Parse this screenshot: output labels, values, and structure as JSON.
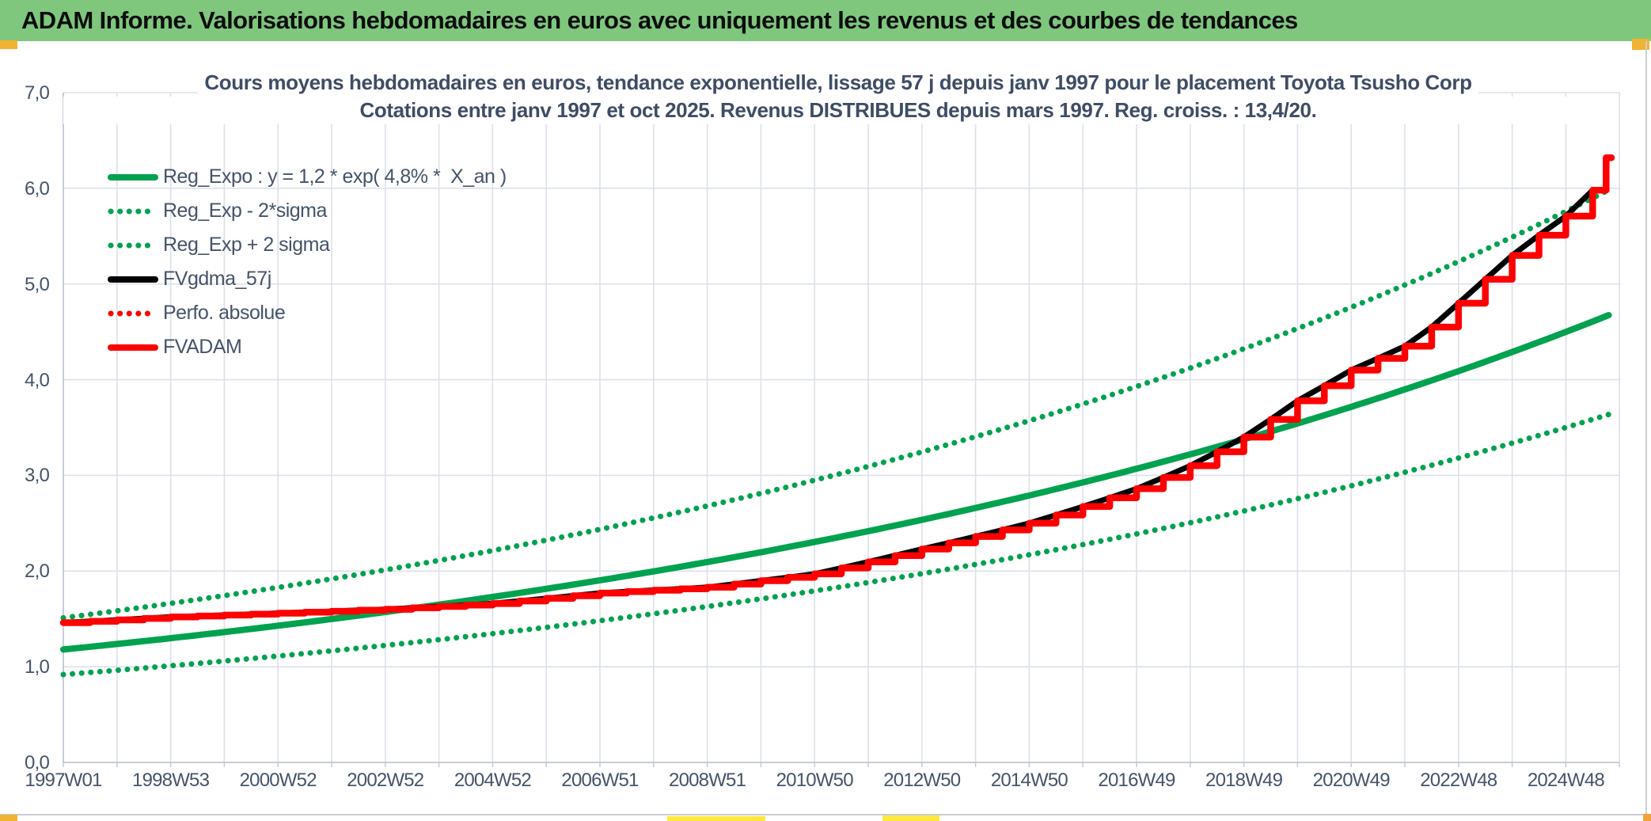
{
  "header": {
    "title": "ADAM Informe. Valorisations hebdomadaires en euros avec uniquement les revenus et des courbes de tendances"
  },
  "chart": {
    "title_line1": "Cours moyens hebdomadaires en euros, tendance exponentielle, lissage 57 j depuis janv 1997 pour le placement Toyota Tsusho Corp",
    "title_line2": "Cotations entre janv 1997 et oct 2025. Revenus DISTRIBUES depuis mars 1997. Reg. croiss. : 13,4/20."
  },
  "chart_data": {
    "type": "line",
    "title": "Cours moyens hebdomadaires en euros, tendance exponentielle, lissage 57 j depuis janv 1997 pour le placement Toyota Tsusho Corp — Cotations entre janv 1997 et oct 2025",
    "x_unit": "years_since_1997W01",
    "x_range": [
      0,
      28.85
    ],
    "y_range": [
      0,
      7
    ],
    "grid": "vertical every 1 year, horizontal every 1.0",
    "legend_position": "top-left inside plot",
    "y_tick_labels": [
      "0,0",
      "1,0",
      "2,0",
      "3,0",
      "4,0",
      "5,0",
      "6,0",
      "7,0"
    ],
    "x_tick_labels": [
      "1997W01",
      "1998W53",
      "2000W52",
      "2002W52",
      "2004W52",
      "2006W51",
      "2008W51",
      "2010W50",
      "2012W50",
      "2014W50",
      "2016W49",
      "2018W49",
      "2020W49",
      "2022W48",
      "2024W48"
    ],
    "series": [
      {
        "name": "Reg_Expo : y = 1,2 * exp( 4,8% *  X_an )",
        "color": "#00A24F",
        "style": "solid",
        "model": "exponential",
        "a": 1.18,
        "rate_per_year": 0.0478,
        "factor": 1.0,
        "width": 8,
        "z": 1
      },
      {
        "name": "Reg_Exp - 2*sigma",
        "color": "#00A24F",
        "style": "dotted",
        "model": "exponential",
        "a": 1.18,
        "rate_per_year": 0.0478,
        "factor": 0.778,
        "width": 7,
        "z": 2
      },
      {
        "name": "Reg_Exp + 2 sigma",
        "color": "#00A24F",
        "style": "dotted",
        "model": "exponential",
        "a": 1.18,
        "rate_per_year": 0.0478,
        "factor": 1.28,
        "width": 7,
        "z": 3
      },
      {
        "name": "FVgdma_57j",
        "color": "#000000",
        "style": "solid",
        "model": "anchors_line",
        "width": 7,
        "z": 5,
        "anchors": [
          [
            0,
            1.46
          ],
          [
            2,
            1.52
          ],
          [
            4,
            1.56
          ],
          [
            6,
            1.6
          ],
          [
            8,
            1.66
          ],
          [
            10,
            1.77
          ],
          [
            12,
            1.83
          ],
          [
            14,
            1.97
          ],
          [
            16,
            2.23
          ],
          [
            18,
            2.5
          ],
          [
            20,
            2.86
          ],
          [
            21,
            3.1
          ],
          [
            22,
            3.4
          ],
          [
            23,
            3.78
          ],
          [
            24,
            4.1
          ],
          [
            25,
            4.35
          ],
          [
            25.5,
            4.55
          ],
          [
            26.1,
            4.85
          ],
          [
            26.6,
            5.1
          ],
          [
            27.1,
            5.35
          ],
          [
            27.6,
            5.55
          ],
          [
            28.1,
            5.75
          ],
          [
            28.5,
            5.98
          ],
          [
            28.75,
            6.32
          ]
        ]
      },
      {
        "name": "Perfo. absolue",
        "color": "#FF0000",
        "style": "dotted",
        "model": "anchors_step",
        "step_years": 0.5,
        "width": 7,
        "z": 4,
        "anchors": [
          [
            0,
            1.46
          ],
          [
            2,
            1.52
          ],
          [
            4,
            1.56
          ],
          [
            6,
            1.6
          ],
          [
            8,
            1.66
          ],
          [
            10,
            1.77
          ],
          [
            12,
            1.83
          ],
          [
            14,
            1.97
          ],
          [
            16,
            2.23
          ],
          [
            18,
            2.5
          ],
          [
            20,
            2.86
          ],
          [
            21,
            3.1
          ],
          [
            22,
            3.4
          ],
          [
            23,
            3.78
          ],
          [
            24,
            4.1
          ],
          [
            25,
            4.35
          ],
          [
            25.5,
            4.55
          ],
          [
            26.1,
            4.85
          ],
          [
            26.6,
            5.1
          ],
          [
            27.1,
            5.35
          ],
          [
            27.6,
            5.55
          ],
          [
            28.1,
            5.75
          ],
          [
            28.5,
            5.98
          ],
          [
            28.75,
            6.32
          ]
        ]
      },
      {
        "name": "FVADAM",
        "color": "#FF0000",
        "style": "step",
        "model": "anchors_step",
        "step_years": 0.5,
        "width": 8.5,
        "z": 6,
        "anchors": [
          [
            0,
            1.46
          ],
          [
            2,
            1.52
          ],
          [
            4,
            1.56
          ],
          [
            6,
            1.6
          ],
          [
            8,
            1.66
          ],
          [
            10,
            1.77
          ],
          [
            12,
            1.83
          ],
          [
            14,
            1.97
          ],
          [
            16,
            2.23
          ],
          [
            18,
            2.5
          ],
          [
            20,
            2.86
          ],
          [
            21,
            3.1
          ],
          [
            22,
            3.4
          ],
          [
            23,
            3.78
          ],
          [
            24,
            4.1
          ],
          [
            25,
            4.35
          ],
          [
            25.5,
            4.55
          ],
          [
            26.1,
            4.85
          ],
          [
            26.6,
            5.1
          ],
          [
            27.1,
            5.35
          ],
          [
            27.6,
            5.55
          ],
          [
            28.1,
            5.75
          ],
          [
            28.5,
            5.98
          ],
          [
            28.75,
            6.32
          ]
        ]
      }
    ]
  },
  "colors": {
    "header_green": "#7EC77D",
    "grid": "#DCE0E9",
    "axis": "#C2C8D2",
    "text_dark": "#44546A",
    "corner_gold": "#F2B232",
    "corner_orange": "#F0A23C",
    "strip_yellow": "#FFE93E",
    "border_gray": "#CBCFD6",
    "bottom_line": "#C9CDD3"
  }
}
